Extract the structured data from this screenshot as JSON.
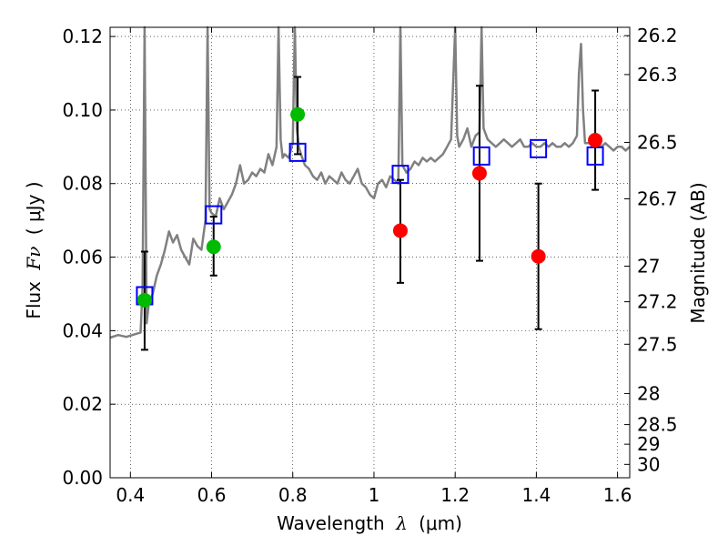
{
  "chart_data": {
    "type": "scatter",
    "title": "",
    "xlabel": "Wavelength",
    "xlabel_symbol": "λ",
    "xlabel_unit": "(μm)",
    "ylabel": "Flux",
    "ylabel_symbol": "Fν",
    "ylabel_unit": "( μJy )",
    "y2label": "Magnitude (AB)",
    "xlim": [
      0.35,
      1.63
    ],
    "ylim": [
      0.0,
      0.1225
    ],
    "grid": true,
    "x_ticks": [
      0.4,
      0.6,
      0.8,
      1.0,
      1.2,
      1.4,
      1.6
    ],
    "x_tick_labels": [
      "0.4",
      "0.6",
      "0.8",
      "1",
      "1.2",
      "1.4",
      "1.6"
    ],
    "y_ticks": [
      0.0,
      0.02,
      0.04,
      0.06,
      0.08,
      0.1,
      0.12
    ],
    "y_tick_labels": [
      "0.00",
      "0.02",
      "0.04",
      "0.06",
      "0.08",
      "0.10",
      "0.12"
    ],
    "mag_ticks": [
      26.2,
      26.3,
      26.5,
      26.7,
      27.0,
      27.2,
      27.5,
      28.0,
      28.5,
      29.0,
      30.0
    ],
    "mag_tick_labels": [
      "26.2",
      "26.3",
      "26.5",
      "26.7",
      "27",
      "27.2",
      "27.5",
      "28",
      "28.5",
      "29",
      "30"
    ],
    "colors": {
      "model_line": "#808080",
      "green_points": "#00bb00",
      "red_points": "#ff0000",
      "model_squares": "#0000ff",
      "errorbars": "#000000"
    },
    "series": [
      {
        "name": "model spectrum",
        "kind": "line",
        "x": [
          0.35,
          0.37,
          0.39,
          0.41,
          0.425,
          0.43,
          0.435,
          0.44,
          0.445,
          0.455,
          0.465,
          0.475,
          0.485,
          0.495,
          0.505,
          0.515,
          0.525,
          0.535,
          0.545,
          0.555,
          0.565,
          0.575,
          0.585,
          0.59,
          0.595,
          0.6,
          0.61,
          0.62,
          0.63,
          0.64,
          0.65,
          0.66,
          0.67,
          0.68,
          0.69,
          0.7,
          0.71,
          0.72,
          0.73,
          0.74,
          0.75,
          0.76,
          0.765,
          0.77,
          0.775,
          0.78,
          0.79,
          0.8,
          0.805,
          0.81,
          0.815,
          0.82,
          0.83,
          0.84,
          0.85,
          0.86,
          0.87,
          0.88,
          0.89,
          0.9,
          0.91,
          0.92,
          0.93,
          0.94,
          0.95,
          0.96,
          0.97,
          0.98,
          0.99,
          1.0,
          1.01,
          1.02,
          1.03,
          1.04,
          1.05,
          1.06,
          1.065,
          1.07,
          1.08,
          1.09,
          1.1,
          1.11,
          1.12,
          1.13,
          1.14,
          1.15,
          1.16,
          1.17,
          1.18,
          1.19,
          1.2,
          1.205,
          1.21,
          1.22,
          1.23,
          1.24,
          1.25,
          1.26,
          1.265,
          1.27,
          1.28,
          1.29,
          1.3,
          1.31,
          1.32,
          1.33,
          1.34,
          1.35,
          1.36,
          1.37,
          1.38,
          1.39,
          1.4,
          1.41,
          1.42,
          1.43,
          1.44,
          1.45,
          1.46,
          1.47,
          1.48,
          1.49,
          1.5,
          1.505,
          1.51,
          1.515,
          1.52,
          1.53,
          1.54,
          1.55,
          1.56,
          1.57,
          1.58,
          1.59,
          1.6,
          1.61,
          1.62,
          1.63
        ],
        "y": [
          0.0381,
          0.0388,
          0.0383,
          0.039,
          0.0395,
          0.052,
          0.125,
          0.042,
          0.047,
          0.05,
          0.055,
          0.058,
          0.062,
          0.067,
          0.064,
          0.066,
          0.062,
          0.06,
          0.058,
          0.065,
          0.063,
          0.062,
          0.07,
          0.125,
          0.073,
          0.072,
          0.071,
          0.076,
          0.073,
          0.075,
          0.077,
          0.08,
          0.085,
          0.08,
          0.081,
          0.083,
          0.082,
          0.084,
          0.083,
          0.088,
          0.085,
          0.09,
          0.125,
          0.092,
          0.087,
          0.088,
          0.087,
          0.091,
          0.125,
          0.095,
          0.09,
          0.088,
          0.085,
          0.084,
          0.082,
          0.081,
          0.083,
          0.08,
          0.082,
          0.081,
          0.08,
          0.083,
          0.081,
          0.08,
          0.082,
          0.084,
          0.08,
          0.079,
          0.077,
          0.076,
          0.08,
          0.081,
          0.079,
          0.082,
          0.081,
          0.08,
          0.125,
          0.085,
          0.083,
          0.084,
          0.086,
          0.085,
          0.087,
          0.086,
          0.087,
          0.086,
          0.087,
          0.088,
          0.09,
          0.092,
          0.125,
          0.093,
          0.09,
          0.092,
          0.095,
          0.09,
          0.093,
          0.094,
          0.125,
          0.095,
          0.092,
          0.091,
          0.09,
          0.091,
          0.092,
          0.091,
          0.09,
          0.091,
          0.092,
          0.09,
          0.09,
          0.091,
          0.09,
          0.09,
          0.091,
          0.09,
          0.091,
          0.09,
          0.09,
          0.091,
          0.09,
          0.091,
          0.093,
          0.11,
          0.118,
          0.1,
          0.091,
          0.091,
          0.09,
          0.091,
          0.09,
          0.091,
          0.09,
          0.089,
          0.09,
          0.09,
          0.089,
          0.09
        ]
      },
      {
        "name": "green detections",
        "kind": "points",
        "x": [
          0.435,
          0.605,
          0.812
        ],
        "y": [
          0.0483,
          0.0628,
          0.0988
        ],
        "yerr_low": [
          0.0135,
          0.0078,
          0.0108
        ],
        "yerr_high": [
          0.0132,
          0.0082,
          0.0102
        ]
      },
      {
        "name": "red detections",
        "kind": "points",
        "x": [
          1.065,
          1.26,
          1.405,
          1.545
        ],
        "y": [
          0.0672,
          0.0828,
          0.0602,
          0.0918
        ],
        "yerr_low": [
          0.0142,
          0.0238,
          0.0198,
          0.0135
        ],
        "yerr_high": [
          0.0138,
          0.0238,
          0.0198,
          0.0135
        ]
      },
      {
        "name": "model band fluxes",
        "kind": "squares",
        "x": [
          0.435,
          0.605,
          0.812,
          1.065,
          1.265,
          1.405,
          1.545
        ],
        "y": [
          0.0495,
          0.0715,
          0.0885,
          0.0825,
          0.0875,
          0.0895,
          0.0875
        ]
      }
    ]
  }
}
